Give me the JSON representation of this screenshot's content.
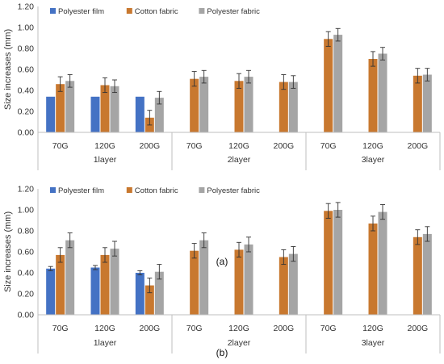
{
  "chart_data": [
    {
      "panel_label": "(a)",
      "type": "bar",
      "ylabel": "Size increases  (mm)",
      "ylim": [
        0,
        1.2
      ],
      "yticks": [
        "0.00",
        "0.20",
        "0.40",
        "0.60",
        "0.80",
        "1.00",
        "1.20"
      ],
      "grid": false,
      "legend_position": "top-left",
      "categories": [
        "70G",
        "120G",
        "200G",
        "70G",
        "120G",
        "200G",
        "70G",
        "120G",
        "200G"
      ],
      "groups": [
        "1layer",
        "2layer",
        "3layer"
      ],
      "series": [
        {
          "name": "Polyester film",
          "color": "#4472C4",
          "values": [
            0.34,
            0.34,
            0.34,
            null,
            null,
            null,
            null,
            null,
            null
          ],
          "errors": [
            0.0,
            0.0,
            0.0,
            null,
            null,
            null,
            null,
            null,
            null
          ]
        },
        {
          "name": "Cotton fabric",
          "color": "#C8782F",
          "values": [
            0.46,
            0.45,
            0.14,
            0.51,
            0.49,
            0.48,
            0.89,
            0.7,
            0.54
          ],
          "errors": [
            0.07,
            0.07,
            0.07,
            0.07,
            0.07,
            0.07,
            0.07,
            0.07,
            0.07
          ]
        },
        {
          "name": "Polyester fabric",
          "color": "#A5A5A5",
          "values": [
            0.49,
            0.44,
            0.33,
            0.53,
            0.53,
            0.48,
            0.93,
            0.75,
            0.55
          ],
          "errors": [
            0.06,
            0.06,
            0.06,
            0.06,
            0.06,
            0.06,
            0.06,
            0.06,
            0.06
          ]
        }
      ]
    },
    {
      "panel_label": "(b)",
      "type": "bar",
      "ylabel": "Size increases (mm)",
      "ylim": [
        0,
        1.2
      ],
      "yticks": [
        "0.00",
        "0.20",
        "0.40",
        "0.60",
        "0.80",
        "1.00",
        "1.20"
      ],
      "grid": false,
      "legend_position": "top-left",
      "categories": [
        "70G",
        "120G",
        "200G",
        "70G",
        "120G",
        "200G",
        "70G",
        "120G",
        "200G"
      ],
      "groups": [
        "1layer",
        "2layer",
        "3layer"
      ],
      "series": [
        {
          "name": "Polyester film",
          "color": "#4472C4",
          "values": [
            0.44,
            0.45,
            0.4,
            null,
            null,
            null,
            null,
            null,
            null
          ],
          "errors": [
            0.02,
            0.02,
            0.02,
            null,
            null,
            null,
            null,
            null,
            null
          ]
        },
        {
          "name": "Cotton fabric",
          "color": "#C8782F",
          "values": [
            0.57,
            0.57,
            0.28,
            0.61,
            0.62,
            0.55,
            0.99,
            0.87,
            0.74
          ],
          "errors": [
            0.07,
            0.07,
            0.07,
            0.07,
            0.07,
            0.07,
            0.07,
            0.07,
            0.07
          ]
        },
        {
          "name": "Polyester fabric",
          "color": "#A5A5A5",
          "values": [
            0.71,
            0.63,
            0.41,
            0.71,
            0.67,
            0.58,
            1.0,
            0.98,
            0.77
          ],
          "errors": [
            0.07,
            0.07,
            0.07,
            0.07,
            0.07,
            0.07,
            0.07,
            0.07,
            0.07
          ]
        }
      ]
    }
  ]
}
